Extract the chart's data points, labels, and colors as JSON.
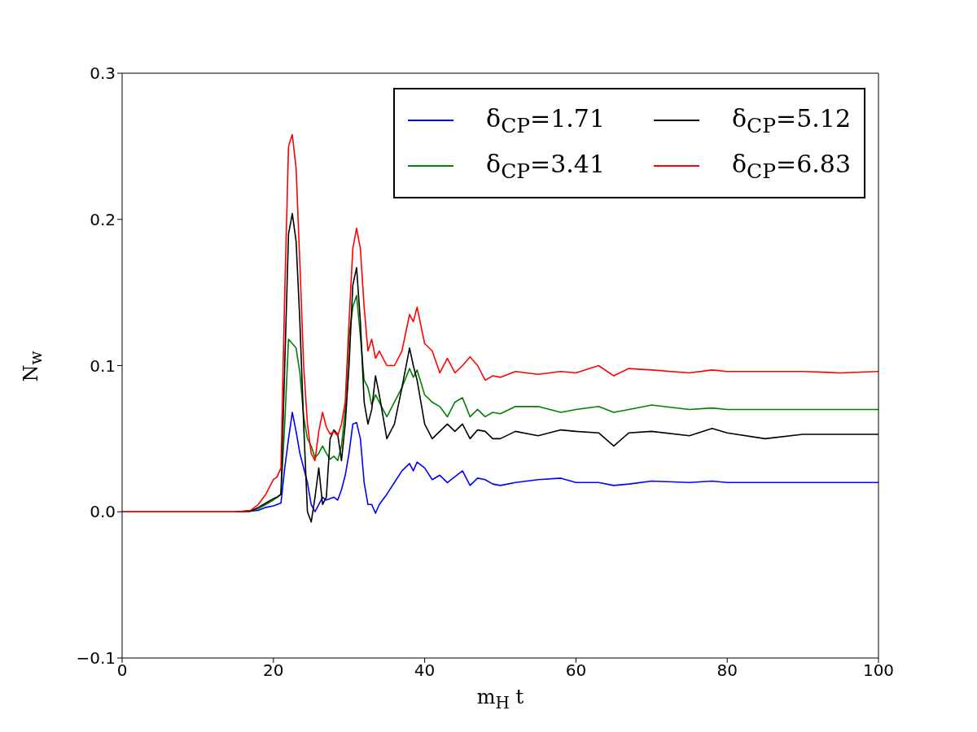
{
  "chart_data": {
    "type": "line",
    "xlabel": "m$_{H}$ t",
    "ylabel": "N$_{w}$",
    "x": [
      0,
      10,
      15,
      17,
      18,
      19,
      20,
      20.5,
      21,
      21.5,
      22,
      22.5,
      23,
      23.5,
      24,
      24.5,
      25,
      25.5,
      26,
      26.5,
      27,
      27.5,
      28,
      28.5,
      29,
      29.5,
      30,
      30.5,
      31,
      31.5,
      32,
      32.5,
      33,
      33.5,
      34,
      35,
      36,
      37,
      38,
      38.5,
      39,
      40,
      41,
      42,
      43,
      44,
      45,
      46,
      47,
      48,
      49,
      50,
      52,
      55,
      58,
      60,
      63,
      65,
      67,
      70,
      75,
      78,
      80,
      85,
      90,
      95,
      100
    ],
    "series": [
      {
        "name": "δ$_{CP}$=1.71",
        "color": "#0000ff",
        "values": [
          null,
          null,
          0,
          0.0005,
          0.001,
          0.003,
          0.004,
          0.005,
          0.006,
          0.03,
          0.05,
          0.068,
          0.055,
          0.04,
          0.03,
          0.02,
          0.005,
          0.0,
          0.005,
          0.01,
          0.008,
          0.009,
          0.01,
          0.008,
          0.015,
          0.025,
          0.04,
          0.06,
          0.061,
          0.05,
          0.02,
          0.005,
          0.005,
          -0.001,
          0.005,
          0.012,
          0.02,
          0.028,
          0.033,
          0.028,
          0.034,
          0.03,
          0.022,
          0.025,
          0.02,
          0.024,
          0.028,
          0.018,
          0.023,
          0.022,
          0.019,
          0.018,
          0.02,
          0.022,
          0.023,
          0.02,
          0.02,
          0.018,
          0.019,
          0.021,
          0.02,
          0.021,
          0.02,
          0.02,
          0.02,
          0.02,
          0.02
        ]
      },
      {
        "name": "δ$_{CP}$=3.41",
        "color": "#008000",
        "values": [
          null,
          null,
          0,
          0.0005,
          0.002,
          0.005,
          0.008,
          0.01,
          0.012,
          0.06,
          0.118,
          0.115,
          0.112,
          0.095,
          0.065,
          0.05,
          0.045,
          0.037,
          0.04,
          0.045,
          0.04,
          0.036,
          0.038,
          0.035,
          0.045,
          0.07,
          0.12,
          0.14,
          0.148,
          0.12,
          0.09,
          0.085,
          0.073,
          0.08,
          0.075,
          0.065,
          0.075,
          0.085,
          0.098,
          0.092,
          0.097,
          0.08,
          0.075,
          0.072,
          0.065,
          0.075,
          0.078,
          0.065,
          0.07,
          0.065,
          0.068,
          0.067,
          0.072,
          0.072,
          0.068,
          0.07,
          0.072,
          0.068,
          0.07,
          0.073,
          0.07,
          0.071,
          0.07,
          0.07,
          0.07,
          0.07,
          0.07
        ]
      },
      {
        "name": "δ$_{CP}$=5.12",
        "color": "#000000",
        "values": [
          0,
          0,
          0,
          0.0005,
          0.003,
          0.006,
          0.009,
          0.01,
          0.012,
          0.1,
          0.19,
          0.204,
          0.185,
          0.13,
          0.06,
          0.0,
          -0.007,
          0.01,
          0.03,
          0.005,
          0.01,
          0.05,
          0.056,
          0.053,
          0.035,
          0.06,
          0.1,
          0.155,
          0.167,
          0.13,
          0.075,
          0.06,
          0.07,
          0.093,
          0.08,
          0.05,
          0.06,
          0.085,
          0.112,
          0.1,
          0.09,
          0.06,
          0.05,
          0.055,
          0.06,
          0.055,
          0.06,
          0.05,
          0.056,
          0.055,
          0.05,
          0.05,
          0.055,
          0.052,
          0.056,
          0.055,
          0.054,
          0.045,
          0.054,
          0.055,
          0.052,
          0.057,
          0.054,
          0.05,
          0.053,
          0.053,
          0.053
        ]
      },
      {
        "name": "δ$_{CP}$=6.83",
        "color": "#ff0000",
        "values": [
          0,
          0,
          0,
          0.001,
          0.005,
          0.012,
          0.022,
          0.024,
          0.03,
          0.15,
          0.25,
          0.258,
          0.235,
          0.17,
          0.1,
          0.06,
          0.04,
          0.035,
          0.055,
          0.068,
          0.058,
          0.053,
          0.055,
          0.052,
          0.06,
          0.075,
          0.13,
          0.18,
          0.194,
          0.18,
          0.14,
          0.11,
          0.118,
          0.105,
          0.11,
          0.1,
          0.1,
          0.11,
          0.135,
          0.13,
          0.14,
          0.115,
          0.11,
          0.095,
          0.105,
          0.095,
          0.1,
          0.106,
          0.1,
          0.09,
          0.093,
          0.092,
          0.096,
          0.094,
          0.096,
          0.095,
          0.1,
          0.093,
          0.098,
          0.097,
          0.095,
          0.097,
          0.096,
          0.096,
          0.096,
          0.095,
          0.096
        ]
      }
    ],
    "xlim": [
      0,
      100
    ],
    "xticks": [
      0,
      20,
      40,
      60,
      80,
      100
    ],
    "ylim": [
      -0.1,
      0.3
    ],
    "yticks": [
      {
        "value": -0.1,
        "label": "−0.1"
      },
      {
        "value": 0,
        "label": "0.0"
      },
      0.1,
      0.2,
      0.3
    ],
    "grid": false,
    "legend": "top right",
    "marker": "none",
    "line_style": "solid"
  }
}
